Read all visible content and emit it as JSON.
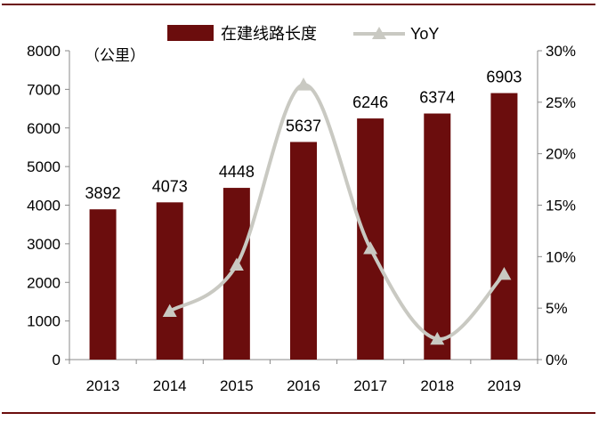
{
  "chart_data": {
    "type": "bar",
    "categories": [
      "2013",
      "2014",
      "2015",
      "2016",
      "2017",
      "2018",
      "2019"
    ],
    "series": [
      {
        "name": "在建线路长度",
        "type": "bar",
        "axis": "left",
        "values": [
          3892,
          4073,
          4448,
          5637,
          6246,
          6374,
          6903
        ],
        "color": "#6b0d0d"
      },
      {
        "name": "YoY",
        "type": "line",
        "axis": "right",
        "smooth": true,
        "marker": "triangle",
        "values": [
          null,
          4.7,
          9.2,
          26.7,
          10.8,
          2.0,
          8.3
        ],
        "color": "#c9c9c2"
      }
    ],
    "unit_label": "（公里）",
    "ylim_left": [
      0,
      8000
    ],
    "yticks_left": [
      "0",
      "1000",
      "2000",
      "3000",
      "4000",
      "5000",
      "6000",
      "7000",
      "8000"
    ],
    "ylim_right": [
      0,
      30
    ],
    "yticks_right": [
      "0%",
      "5%",
      "10%",
      "15%",
      "20%",
      "25%",
      "30%"
    ],
    "grid": false,
    "legend_position": "top-center",
    "data_labels": [
      "3892",
      "4073",
      "4448",
      "5637",
      "6246",
      "6374",
      "6903"
    ]
  }
}
